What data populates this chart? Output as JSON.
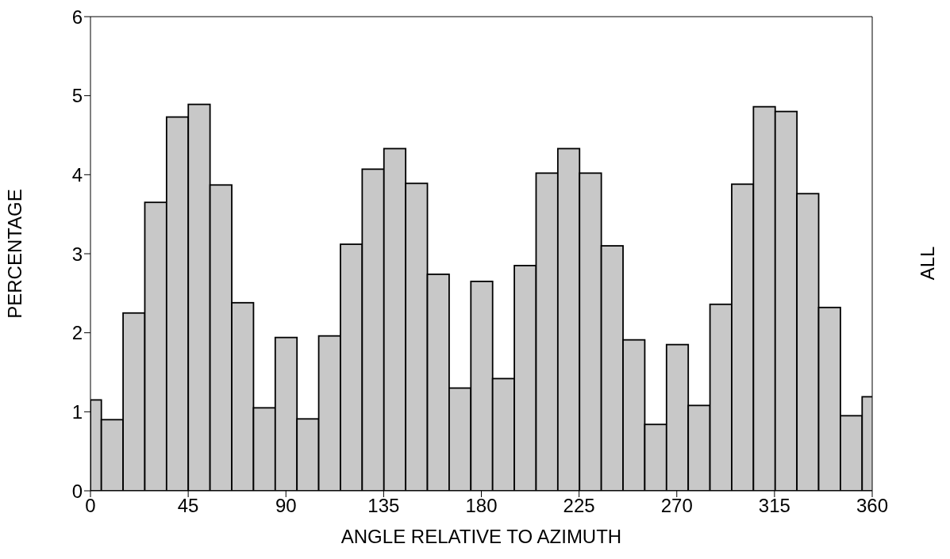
{
  "chart_data": {
    "type": "histogram",
    "xlabel": "ANGLE RELATIVE TO AZIMUTH",
    "ylabel": "PERCENTAGE",
    "annotations": [
      "ALL"
    ],
    "bins": [
      0,
      5,
      15,
      25,
      35,
      45,
      55,
      65,
      75,
      85,
      95,
      105,
      115,
      125,
      135,
      145,
      155,
      165,
      175,
      185,
      195,
      205,
      215,
      225,
      235,
      245,
      255,
      265,
      275,
      285,
      295,
      305,
      315,
      325,
      335,
      345,
      355,
      360
    ],
    "values": [
      1.15,
      0.9,
      2.25,
      3.65,
      4.73,
      4.89,
      3.87,
      2.38,
      1.05,
      1.94,
      0.91,
      1.96,
      3.12,
      4.07,
      4.33,
      3.89,
      2.74,
      1.3,
      2.65,
      1.42,
      2.85,
      4.02,
      4.33,
      4.02,
      3.1,
      1.91,
      0.84,
      1.85,
      1.08,
      2.36,
      3.88,
      4.86,
      4.8,
      3.76,
      2.32,
      0.95,
      1.19
    ],
    "color": "#c8c8c8",
    "xlim": [
      0,
      360
    ],
    "xticks": [
      0,
      45,
      90,
      135,
      180,
      225,
      270,
      315,
      360
    ],
    "ylim": [
      0,
      6
    ],
    "yticks": [
      0,
      1,
      2,
      3,
      4,
      5,
      6
    ]
  }
}
